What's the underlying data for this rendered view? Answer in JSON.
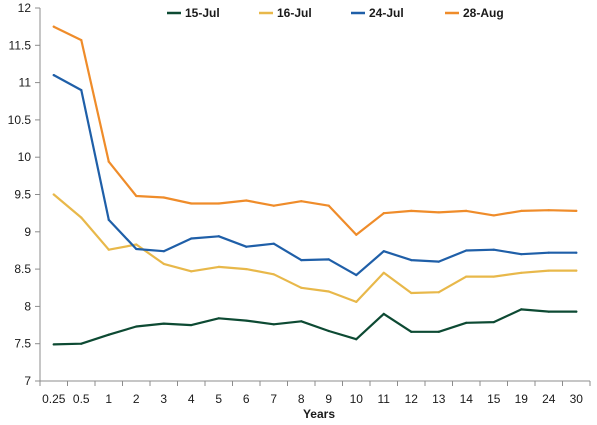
{
  "chart_data": {
    "type": "line",
    "categories": [
      "0.25",
      "0.5",
      "1",
      "2",
      "3",
      "4",
      "5",
      "6",
      "7",
      "8",
      "9",
      "10",
      "11",
      "12",
      "13",
      "14",
      "15",
      "19",
      "24",
      "30"
    ],
    "xlabel": "Years",
    "ylabel": "",
    "ylim": [
      7,
      12
    ],
    "yticks": [
      "7",
      "7.5",
      "8",
      "8.5",
      "9",
      "9.5",
      "10",
      "10.5",
      "11",
      "11.5",
      "12"
    ],
    "grid": false,
    "legend_position": "top",
    "series": [
      {
        "name": "15-Jul",
        "color": "#0d4a33",
        "values": [
          7.49,
          7.5,
          7.62,
          7.73,
          7.77,
          7.75,
          7.84,
          7.81,
          7.76,
          7.8,
          7.67,
          7.56,
          7.9,
          7.66,
          7.66,
          7.78,
          7.79,
          7.96,
          7.93,
          7.93
        ]
      },
      {
        "name": "16-Jul",
        "color": "#e8b84a",
        "values": [
          9.5,
          9.19,
          8.76,
          8.83,
          8.57,
          8.47,
          8.53,
          8.5,
          8.43,
          8.25,
          8.2,
          8.06,
          8.45,
          8.18,
          8.19,
          8.4,
          8.4,
          8.45,
          8.48,
          8.48
        ]
      },
      {
        "name": "24-Jul",
        "color": "#1f5fa8",
        "values": [
          11.1,
          10.9,
          9.16,
          8.77,
          8.74,
          8.91,
          8.94,
          8.8,
          8.84,
          8.62,
          8.63,
          8.42,
          8.74,
          8.62,
          8.6,
          8.75,
          8.76,
          8.7,
          8.72,
          8.72
        ]
      },
      {
        "name": "28-Aug",
        "color": "#ef8c2a",
        "values": [
          11.75,
          11.57,
          9.94,
          9.48,
          9.46,
          9.38,
          9.38,
          9.42,
          9.35,
          9.41,
          9.35,
          8.96,
          9.25,
          9.28,
          9.26,
          9.28,
          9.22,
          9.28,
          9.29,
          9.28
        ]
      }
    ]
  }
}
